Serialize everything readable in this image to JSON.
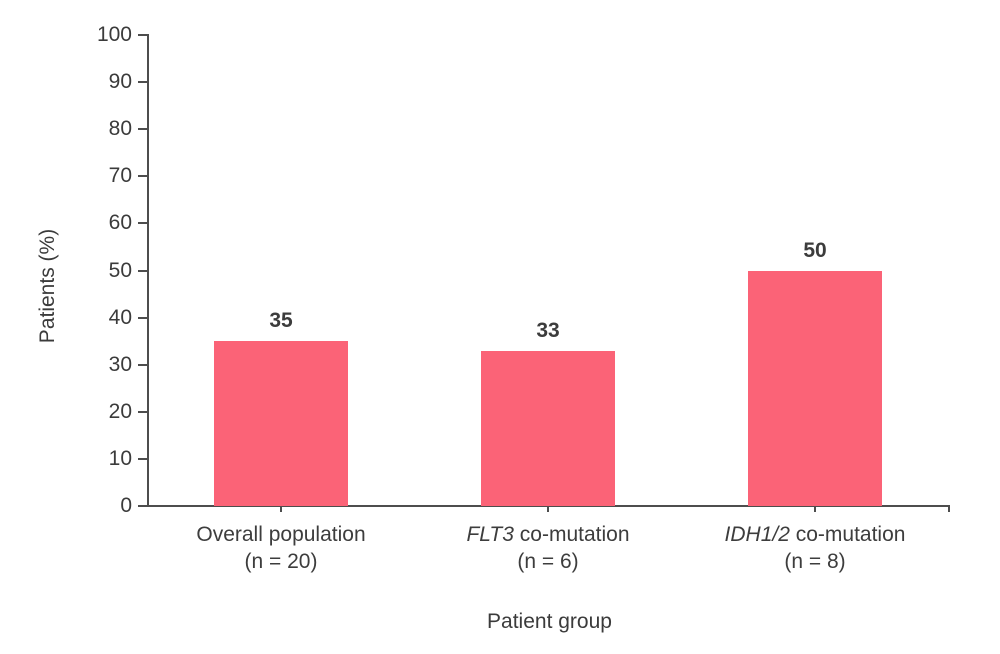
{
  "chart_data": {
    "type": "bar",
    "title": "",
    "xlabel": "Patient group",
    "ylabel": "Patients (%)",
    "ylim": [
      0,
      100
    ],
    "ytick_step": 10,
    "yticks": [
      0,
      10,
      20,
      30,
      40,
      50,
      60,
      70,
      80,
      90,
      100
    ],
    "categories": [
      "Overall population (n = 20)",
      "FLT3 co-mutation (n = 6)",
      "IDH1/2 co-mutation (n = 8)"
    ],
    "values": [
      35,
      33,
      50
    ],
    "grid": false,
    "legend": false,
    "points": [
      {
        "category": "Overall population",
        "label_italic": "",
        "label_rest": "Overall population",
        "sub": "(n = 20)",
        "n": 20,
        "value": 35
      },
      {
        "category": "FLT3 co-mutation",
        "label_italic": "FLT3",
        "label_rest": " co-mutation",
        "sub": "(n = 6)",
        "n": 6,
        "value": 33
      },
      {
        "category": "IDH1/2 co-mutation",
        "label_italic": "IDH1/2",
        "label_rest": " co-mutation",
        "sub": "(n = 8)",
        "n": 8,
        "value": 50
      }
    ],
    "colors": {
      "bar": "#fb6377",
      "axis": "#4d4d4d",
      "text": "#3d3d3d",
      "value_label": "#3c3c3c"
    }
  }
}
